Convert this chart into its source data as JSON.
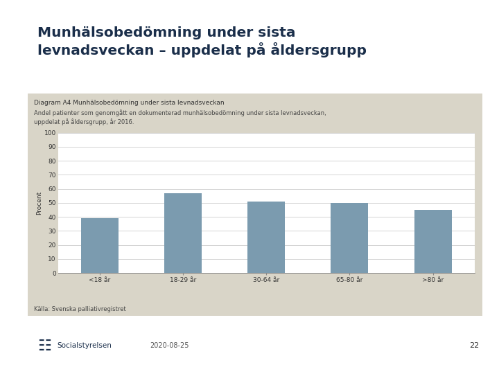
{
  "title_line1": "Munhälsobedömning under sista",
  "title_line2": "levnadsveckan – uppdelat på åldersgrupp",
  "diagram_label": "Diagram A4 Munhälsobedömning under sista levnadsveckan",
  "subtitle": "Andel patienter som genomgått en dokumenterad munhälsobedömning under sista levnadsveckan,\nuppdelat på åldersgrupp, år 2016.",
  "ylabel": "Procent",
  "source": "Källa: Svenska palliativregistret",
  "categories": [
    "<18 år",
    "18-29 år",
    "30-64 år",
    "65-80 år",
    ">80 år"
  ],
  "values": [
    39,
    57,
    51,
    50,
    45
  ],
  "bar_color": "#7b9baf",
  "ylim": [
    0,
    100
  ],
  "yticks": [
    0,
    10,
    20,
    30,
    40,
    50,
    60,
    70,
    80,
    90,
    100
  ],
  "page_bg": "#ffffff",
  "panel_bg": "#d9d5c8",
  "plot_bg": "#ffffff",
  "title_color": "#1a2e4a",
  "title_fontsize": 14.5,
  "diagram_label_fontsize": 6.5,
  "subtitle_fontsize": 6.0,
  "axis_fontsize": 6.5,
  "tick_fontsize": 6.5,
  "source_fontsize": 6.0,
  "footer_date": "2020-08-25",
  "footer_page": "22",
  "footer_org": "Socialstyrelsen"
}
